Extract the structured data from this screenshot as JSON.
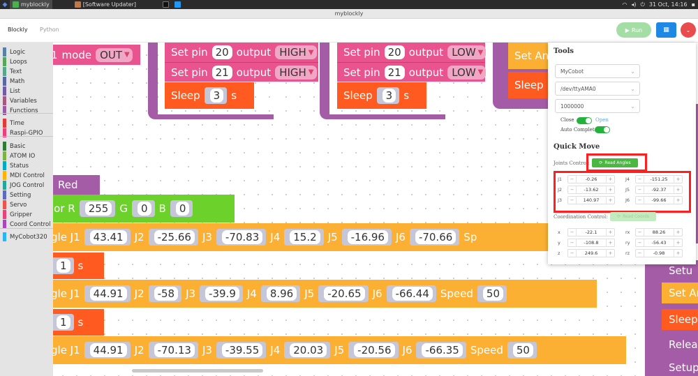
{
  "taskbar": {
    "tasks": [
      "myblockly",
      "[Software Updater]"
    ],
    "clock": "31 Oct, 14:16"
  },
  "window": {
    "title": "myblockly"
  },
  "header": {
    "tabs": [
      "Blockly",
      "Python"
    ],
    "run_label": "Run"
  },
  "toolbox": {
    "categories": [
      {
        "label": "Logic",
        "color": "#5b80a5"
      },
      {
        "label": "Loops",
        "color": "#5ba55b"
      },
      {
        "label": "Text",
        "color": "#5ba58c"
      },
      {
        "label": "Math",
        "color": "#5b67a5"
      },
      {
        "label": "List",
        "color": "#745ba5"
      },
      {
        "label": "Variables",
        "color": "#a55b80"
      },
      {
        "label": "Functions",
        "color": "#995ba5"
      },
      {
        "label": "Time",
        "color": "#e53935"
      },
      {
        "label": "Raspi-GPIO",
        "color": "#ec407a"
      },
      {
        "label": "Basic",
        "color": "#2e7d32"
      },
      {
        "label": "ATOM IO",
        "color": "#7cb342"
      },
      {
        "label": "Status",
        "color": "#00acc1"
      },
      {
        "label": "MDI Control",
        "color": "#ffb300"
      },
      {
        "label": "JOG Control",
        "color": "#26a69a"
      },
      {
        "label": "Setting",
        "color": "#5c6bc0"
      },
      {
        "label": "Servo",
        "color": "#ef5350"
      },
      {
        "label": "Gripper",
        "color": "#ec407a"
      },
      {
        "label": "Coord Control",
        "color": "#ab47bc"
      },
      {
        "label": "MyCobot320",
        "color": "#29b6f6"
      }
    ]
  },
  "workspace": {
    "mode_block": {
      "num": "1",
      "label": "mode",
      "value": "OUT"
    },
    "set_pin_a": [
      {
        "label": "Set pin",
        "pin": "20",
        "out": "output",
        "level": "HIGH"
      },
      {
        "label": "Set pin",
        "pin": "21",
        "out": "output",
        "level": "HIGH"
      }
    ],
    "sleep_a": {
      "label": "Sleep",
      "value": "3",
      "unit": "s"
    },
    "set_pin_b": [
      {
        "label": "Set pin",
        "pin": "20",
        "out": "output",
        "level": "LOW"
      },
      {
        "label": "Set pin",
        "pin": "21",
        "out": "output",
        "level": "LOW"
      }
    ],
    "sleep_b": {
      "label": "Sleep",
      "value": "3",
      "unit": "s"
    },
    "set_a_label": "Set An",
    "sleep_c_label": "Sleep",
    "red_label": "Red",
    "color_block": {
      "lbl": "lor R",
      "r": "255",
      "g_lbl": "G",
      "g": "0",
      "b_lbl": "B",
      "b": "0"
    },
    "angle_rows": [
      {
        "prefix": "gle J1",
        "j1": "43.41",
        "j2": "-25.66",
        "j3": "-70.83",
        "j4": "15.2",
        "j5": "-16.96",
        "j6": "-70.66",
        "speed_lbl": "Sp",
        "speed": ""
      },
      {
        "prefix": "gle J1",
        "j1": "44.91",
        "j2": "-58",
        "j3": "-39.9",
        "j4": "8.96",
        "j5": "-20.65",
        "j6": "-66.44",
        "speed_lbl": "Speed",
        "speed": "50"
      },
      {
        "prefix": "gle J1",
        "j1": "44.91",
        "j2": "-70.13",
        "j3": "-39.55",
        "j4": "20.03",
        "j5": "-20.56",
        "j6": "-66.35",
        "speed_lbl": "Speed",
        "speed": "50"
      }
    ],
    "joint_labels": {
      "j2": "J2",
      "j3": "J3",
      "j4": "J4",
      "j5": "J5",
      "j6": "J6"
    },
    "wait_rows": [
      {
        "value": "1",
        "unit": "s"
      },
      {
        "value": "1",
        "unit": "s"
      }
    ],
    "right_stack": [
      "Setu",
      "Set An",
      "Sleep",
      "Relea",
      "Setup"
    ]
  },
  "panel": {
    "tools_title": "Tools",
    "device": "MyCobot",
    "port": "/dev/ttyAMA0",
    "baud": "1000000",
    "close_label": "Close",
    "open_label": "Open",
    "auto_complete_label": "Auto Complete",
    "quick_move_title": "Quick Move",
    "joints_control_label": "Joints Control:",
    "read_angles_label": "Read Angles",
    "joints": [
      {
        "name": "J1",
        "value": "-0.26"
      },
      {
        "name": "J4",
        "value": "-151.25"
      },
      {
        "name": "J2",
        "value": "-13.62"
      },
      {
        "name": "J5",
        "value": "-92.37"
      },
      {
        "name": "J3",
        "value": "140.97"
      },
      {
        "name": "J6",
        "value": "-99.66"
      }
    ],
    "coordination_label": "Coordination Control:",
    "read_coords_label": "Read Coords",
    "coords": [
      {
        "name": "x",
        "value": "-22.1"
      },
      {
        "name": "rx",
        "value": "88.26"
      },
      {
        "name": "y",
        "value": "-108.8"
      },
      {
        "name": "ry",
        "value": "-56.43"
      },
      {
        "name": "z",
        "value": "249.6"
      },
      {
        "name": "rz",
        "value": "-0.98"
      }
    ],
    "minus": "−",
    "plus": "+"
  }
}
